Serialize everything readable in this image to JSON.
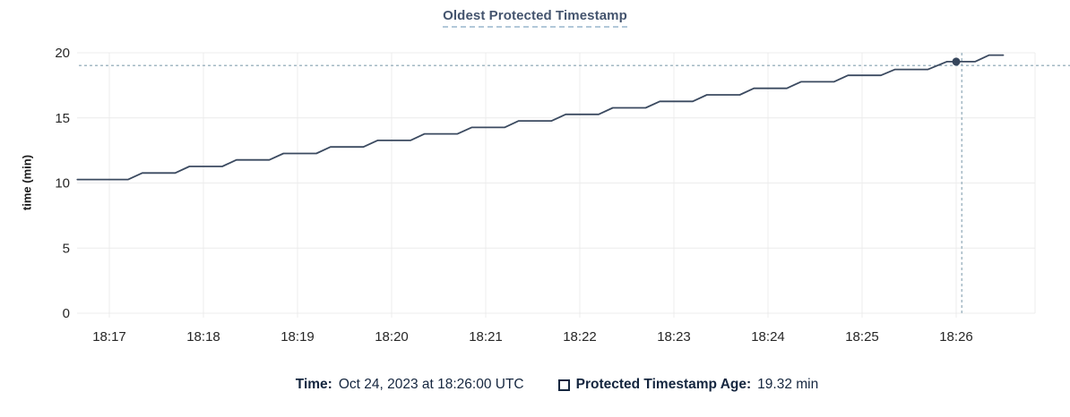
{
  "title": "Oldest Protected Timestamp",
  "colors": {
    "background": "#ffffff",
    "title": "#44546e",
    "title_underline": "#b2c8d9",
    "line": "#3b4a60",
    "dot": "#36465c",
    "crosshair": "#a3b8c4",
    "grid": "#ececec",
    "tick_text": "#262626",
    "axis_label_text": "#1c1c1c",
    "footer_text": "#15263f"
  },
  "chart_data": {
    "type": "line",
    "title": "Oldest Protected Timestamp",
    "xlabel": "",
    "ylabel": "time (min)",
    "ylim": [
      0,
      20
    ],
    "y_ticks": [
      0,
      5,
      10,
      15,
      20
    ],
    "x_tick_labels": [
      "18:17",
      "18:18",
      "18:19",
      "18:20",
      "18:21",
      "18:22",
      "18:23",
      "18:24",
      "18:25",
      "18:26"
    ],
    "x_encoding": "minutes after 18:17",
    "grid": true,
    "legend_position": "bottom",
    "series": [
      {
        "name": "Protected Timestamp Age",
        "points": [
          [
            -0.34,
            10.27
          ],
          [
            0.2,
            10.27
          ],
          [
            0.35,
            10.77
          ],
          [
            0.7,
            10.77
          ],
          [
            0.85,
            11.27
          ],
          [
            1.2,
            11.27
          ],
          [
            1.35,
            11.77
          ],
          [
            1.7,
            11.77
          ],
          [
            1.85,
            12.27
          ],
          [
            2.2,
            12.27
          ],
          [
            2.35,
            12.77
          ],
          [
            2.7,
            12.77
          ],
          [
            2.85,
            13.27
          ],
          [
            3.2,
            13.27
          ],
          [
            3.35,
            13.77
          ],
          [
            3.7,
            13.77
          ],
          [
            3.85,
            14.27
          ],
          [
            4.2,
            14.27
          ],
          [
            4.35,
            14.77
          ],
          [
            4.7,
            14.77
          ],
          [
            4.85,
            15.27
          ],
          [
            5.2,
            15.27
          ],
          [
            5.35,
            15.77
          ],
          [
            5.7,
            15.77
          ],
          [
            5.85,
            16.27
          ],
          [
            6.2,
            16.27
          ],
          [
            6.35,
            16.77
          ],
          [
            6.7,
            16.77
          ],
          [
            6.85,
            17.27
          ],
          [
            7.2,
            17.27
          ],
          [
            7.35,
            17.77
          ],
          [
            7.7,
            17.77
          ],
          [
            7.85,
            18.27
          ],
          [
            8.2,
            18.27
          ],
          [
            8.35,
            18.72
          ],
          [
            8.7,
            18.72
          ],
          [
            8.9,
            19.32
          ],
          [
            9.2,
            19.32
          ],
          [
            9.35,
            19.82
          ],
          [
            9.5,
            19.82
          ]
        ]
      }
    ],
    "marker": {
      "t": 9.0,
      "value": 19.32
    },
    "crosshair": {
      "t": 9.06,
      "value": 19.02
    }
  },
  "footer": {
    "time_label": "Time:",
    "time_value": "Oct 24, 2023 at 18:26:00 UTC",
    "legend_label": "Protected Timestamp Age:",
    "legend_value": "19.32 min"
  }
}
